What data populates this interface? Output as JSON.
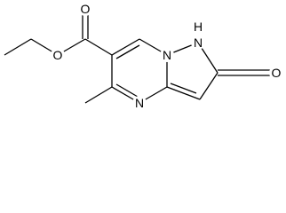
{
  "atoms": [
    {
      "label": "O"
    },
    {
      "label": "O"
    },
    {
      "label": "N"
    },
    {
      "label": "N"
    },
    {
      "label": "H"
    },
    {
      "label": "N"
    },
    {
      "label": "O"
    }
  ]
}
